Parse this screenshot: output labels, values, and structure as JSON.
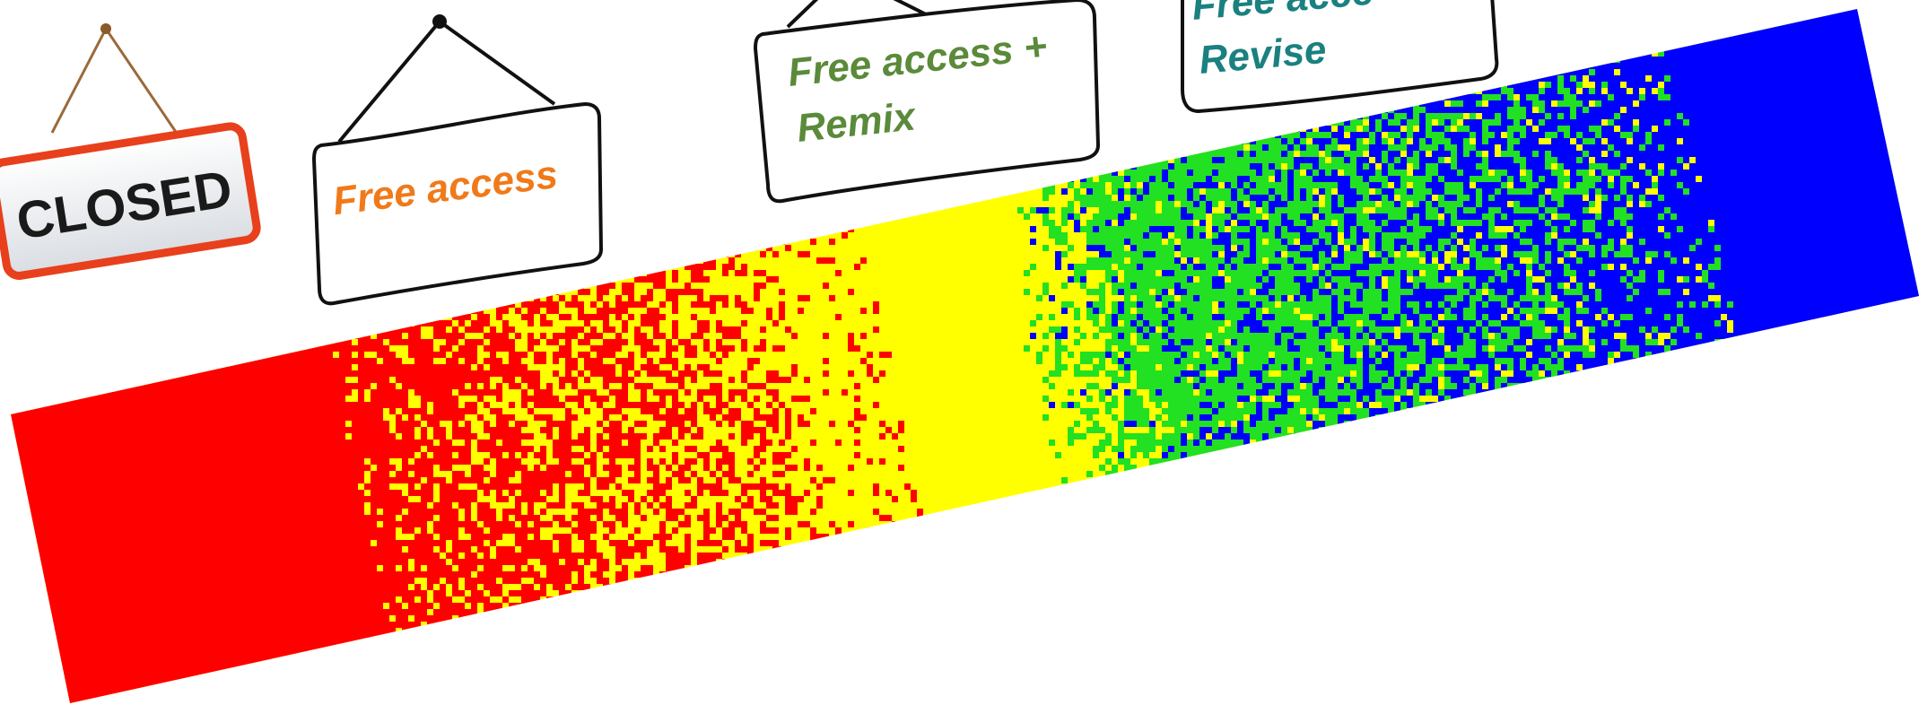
{
  "signs": {
    "closed": {
      "label": "CLOSED",
      "text_color": "#1a1a1a",
      "border_color": "#e8401c"
    },
    "free_access": {
      "label": "Free access",
      "text_color": "#f07a1a"
    },
    "remix": {
      "line1": "Free access +",
      "line2": "Remix",
      "text_color": "#5a8a3a"
    },
    "revise": {
      "line1": "Free acce",
      "line2": "Revise",
      "text_color": "#1a8080"
    }
  },
  "spectrum": {
    "colors": [
      "#ff0000",
      "#ffff00",
      "#22e022",
      "#0000ff"
    ],
    "direction": "left-to-right",
    "description_stops": [
      "red",
      "red-yellow speckle",
      "yellow",
      "green-blue speckle",
      "blue"
    ]
  }
}
